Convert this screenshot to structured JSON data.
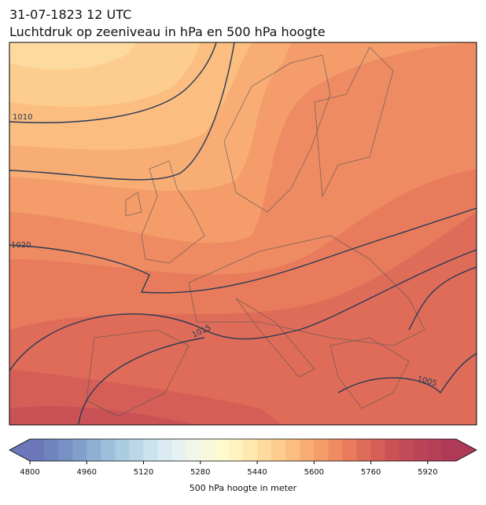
{
  "header": {
    "title": "31-07-1823 12 UTC",
    "subtitle": "Luchtdruk op zeeniveau in hPa en 500 hPa hoogte"
  },
  "map": {
    "contour_labels": [
      1010,
      1020,
      1015,
      1005
    ]
  },
  "colorbar": {
    "label": "500 hPa hoogte in meter",
    "lim": [
      4800,
      6000
    ],
    "ticks": [
      4800,
      4960,
      5120,
      5280,
      5440,
      5600,
      5760,
      5920
    ],
    "colors": [
      "#6b77b8",
      "#6f84bd",
      "#7791c4",
      "#82a0cb",
      "#8fb0d3",
      "#9dbfdb",
      "#accce2",
      "#bcd8e8",
      "#cbe3ee",
      "#daebf2",
      "#e6f2f2",
      "#f0f6e8",
      "#f8f9dc",
      "#fefad0",
      "#fff3c0",
      "#fee8ae",
      "#fddb9e",
      "#fccd8e",
      "#fbbd80",
      "#f8ad74",
      "#f49c6a",
      "#ef8b62",
      "#e87b5c",
      "#df6c58",
      "#d55e56",
      "#ca5156",
      "#c34a57",
      "#bd4457",
      "#b63f58",
      "#af3a58"
    ]
  }
}
